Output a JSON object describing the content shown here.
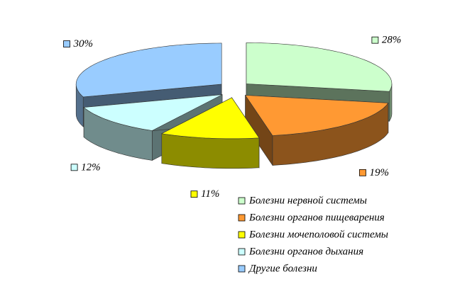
{
  "chart_data": {
    "type": "pie",
    "categories": [
      "Болезни нервной системы",
      "Болезни органов пищеварения",
      "Болезни мочеполовой системы",
      "Болезни органов дыхания",
      "Другие болезни"
    ],
    "values": [
      28,
      19,
      11,
      12,
      30
    ],
    "value_labels": [
      "28%",
      "19%",
      "11%",
      "12%",
      "30%"
    ],
    "colors": [
      "#ccffcc",
      "#ff9933",
      "#ffff00",
      "#ccffff",
      "#99ccff"
    ]
  }
}
